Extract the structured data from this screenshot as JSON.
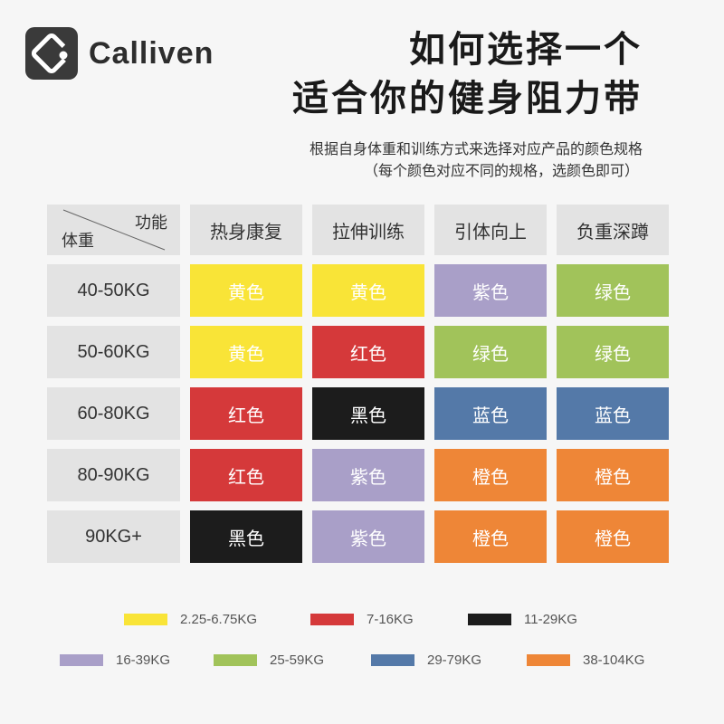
{
  "brand": {
    "name": "Calliven",
    "logo_icon": "calliven-logo-icon"
  },
  "title": {
    "line1": "如何选择一个",
    "line2": "适合你的健身阻力带"
  },
  "subtitle": {
    "line1": "根据自身体重和训练方式来选择对应产品的颜色规格",
    "line2": "（每个颜色对应不同的规格，选颜色即可）"
  },
  "table": {
    "corner_top": "功能",
    "corner_bottom": "体重",
    "columns": [
      "热身康复",
      "拉伸训练",
      "引体向上",
      "负重深蹲"
    ],
    "rows": [
      {
        "label": "40-50KG",
        "cells": [
          {
            "text": "黄色",
            "color": "#f9e437"
          },
          {
            "text": "黄色",
            "color": "#f9e437"
          },
          {
            "text": "紫色",
            "color": "#a99fc8"
          },
          {
            "text": "绿色",
            "color": "#a1c35a"
          }
        ]
      },
      {
        "label": "50-60KG",
        "cells": [
          {
            "text": "黄色",
            "color": "#f9e437"
          },
          {
            "text": "红色",
            "color": "#d5393a"
          },
          {
            "text": "绿色",
            "color": "#a1c35a"
          },
          {
            "text": "绿色",
            "color": "#a1c35a"
          }
        ]
      },
      {
        "label": "60-80KG",
        "cells": [
          {
            "text": "红色",
            "color": "#d5393a"
          },
          {
            "text": "黑色",
            "color": "#1c1c1c"
          },
          {
            "text": "蓝色",
            "color": "#5479a8"
          },
          {
            "text": "蓝色",
            "color": "#5479a8"
          }
        ]
      },
      {
        "label": "80-90KG",
        "cells": [
          {
            "text": "红色",
            "color": "#d5393a"
          },
          {
            "text": "紫色",
            "color": "#a99fc8"
          },
          {
            "text": "橙色",
            "color": "#ee8637"
          },
          {
            "text": "橙色",
            "color": "#ee8637"
          }
        ]
      },
      {
        "label": "90KG+",
        "cells": [
          {
            "text": "黑色",
            "color": "#1c1c1c"
          },
          {
            "text": "紫色",
            "color": "#a99fc8"
          },
          {
            "text": "橙色",
            "color": "#ee8637"
          },
          {
            "text": "橙色",
            "color": "#ee8637"
          }
        ]
      }
    ]
  },
  "legend": [
    [
      {
        "label": "2.25-6.75KG",
        "color": "#f9e437"
      },
      {
        "label": "7-16KG",
        "color": "#d5393a"
      },
      {
        "label": "11-29KG",
        "color": "#1c1c1c"
      }
    ],
    [
      {
        "label": "16-39KG",
        "color": "#a99fc8"
      },
      {
        "label": "25-59KG",
        "color": "#a1c35a"
      },
      {
        "label": "29-79KG",
        "color": "#5479a8"
      },
      {
        "label": "38-104KG",
        "color": "#ee8637"
      }
    ]
  ]
}
